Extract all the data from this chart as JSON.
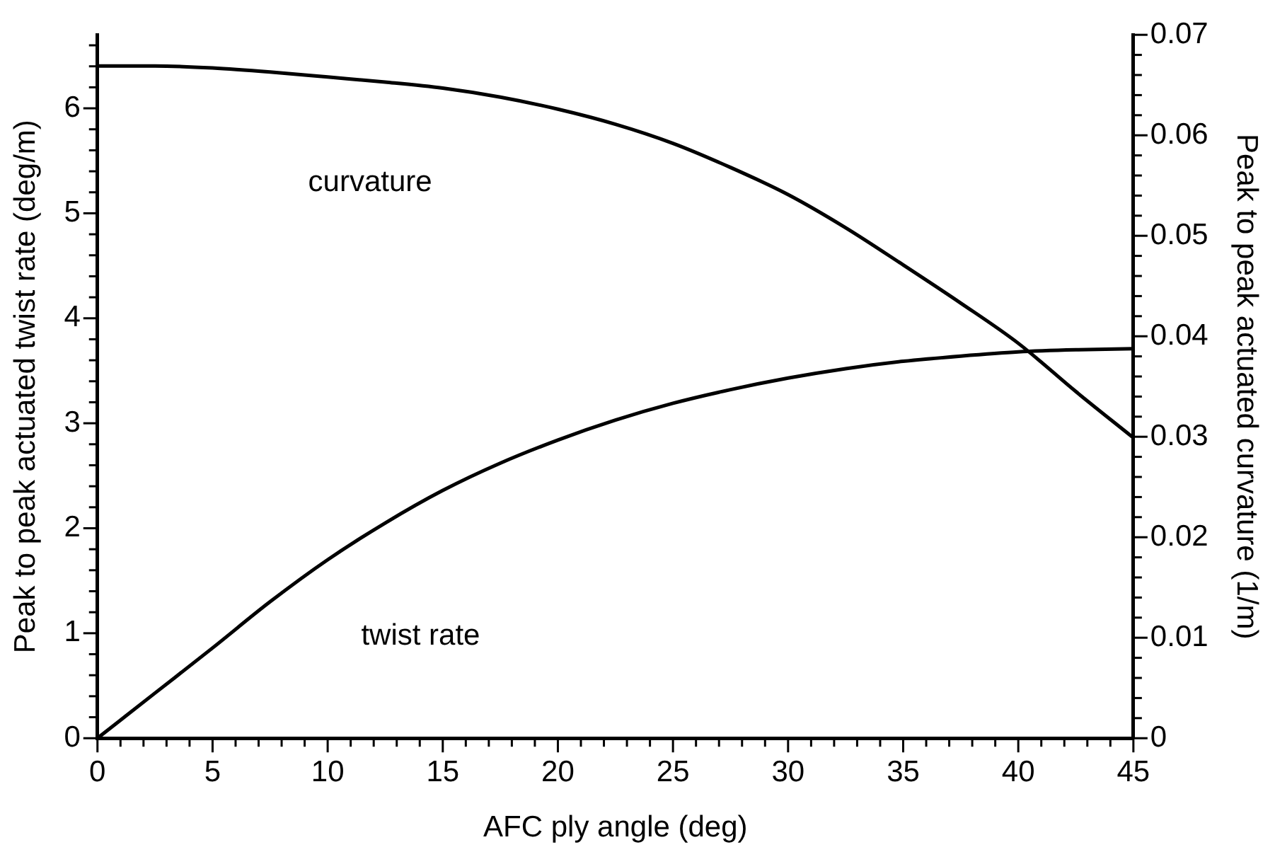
{
  "chart_data": {
    "type": "line",
    "xlabel": "AFC ply angle (deg)",
    "ylabel": "Peak to peak actuated twist rate (deg/m)",
    "y2label": "Peak to peak actuated curvature (1/m)",
    "x": [
      0,
      2.5,
      5,
      7.5,
      10,
      12.5,
      15,
      17.5,
      20,
      22.5,
      25,
      27.5,
      30,
      32.5,
      35,
      37.5,
      40,
      42.5,
      45
    ],
    "series": [
      {
        "name": "twist rate",
        "color": "#000000",
        "axis": "y",
        "values": [
          0,
          0.43,
          0.86,
          1.3,
          1.7,
          2.05,
          2.36,
          2.62,
          2.84,
          3.03,
          3.19,
          3.32,
          3.43,
          3.52,
          3.59,
          3.64,
          3.68,
          3.7,
          3.71
        ]
      },
      {
        "name": "curvature",
        "color": "#000000",
        "axis": "y2",
        "values": [
          0.0669,
          0.0669,
          0.0667,
          0.0663,
          0.0658,
          0.0653,
          0.0647,
          0.0638,
          0.0626,
          0.0611,
          0.0592,
          0.0568,
          0.0541,
          0.0508,
          0.0471,
          0.0433,
          0.0393,
          0.0345,
          0.0299
        ]
      }
    ],
    "xlim": [
      0,
      45
    ],
    "xticks": [
      0,
      {
        "value": 1,
        "label": null
      },
      {
        "value": 2,
        "label": null
      },
      {
        "value": 3,
        "label": null
      },
      {
        "value": 4,
        "label": null
      },
      5,
      {
        "value": 6,
        "label": null
      },
      {
        "value": 7,
        "label": null
      },
      {
        "value": 8,
        "label": null
      },
      {
        "value": 9,
        "label": null
      },
      10,
      {
        "value": 11,
        "label": null
      },
      {
        "value": 12,
        "label": null
      },
      {
        "value": 13,
        "label": null
      },
      {
        "value": 14,
        "label": null
      },
      15,
      {
        "value": 16,
        "label": null
      },
      {
        "value": 17,
        "label": null
      },
      {
        "value": 18,
        "label": null
      },
      {
        "value": 19,
        "label": null
      },
      20,
      {
        "value": 21,
        "label": null
      },
      {
        "value": 22,
        "label": null
      },
      {
        "value": 23,
        "label": null
      },
      {
        "value": 24,
        "label": null
      },
      25,
      {
        "value": 26,
        "label": null
      },
      {
        "value": 27,
        "label": null
      },
      {
        "value": 28,
        "label": null
      },
      {
        "value": 29,
        "label": null
      },
      30,
      {
        "value": 31,
        "label": null
      },
      {
        "value": 32,
        "label": null
      },
      {
        "value": 33,
        "label": null
      },
      {
        "value": 34,
        "label": null
      },
      35,
      {
        "value": 36,
        "label": null
      },
      {
        "value": 37,
        "label": null
      },
      {
        "value": 38,
        "label": null
      },
      {
        "value": 39,
        "label": null
      },
      40,
      {
        "value": 41,
        "label": null
      },
      {
        "value": 42,
        "label": null
      },
      {
        "value": 43,
        "label": null
      },
      {
        "value": 44,
        "label": null
      },
      45
    ],
    "ylim": [
      0,
      6.7
    ],
    "yticks": [
      0,
      {
        "value": 0.2,
        "label": null
      },
      {
        "value": 0.4,
        "label": null
      },
      {
        "value": 0.6,
        "label": null
      },
      {
        "value": 0.8,
        "label": null
      },
      1,
      {
        "value": 1.2,
        "label": null
      },
      {
        "value": 1.4,
        "label": null
      },
      {
        "value": 1.6,
        "label": null
      },
      {
        "value": 1.8,
        "label": null
      },
      2,
      {
        "value": 2.2,
        "label": null
      },
      {
        "value": 2.4,
        "label": null
      },
      {
        "value": 2.6,
        "label": null
      },
      {
        "value": 2.8,
        "label": null
      },
      3,
      {
        "value": 3.2,
        "label": null
      },
      {
        "value": 3.4,
        "label": null
      },
      {
        "value": 3.6,
        "label": null
      },
      {
        "value": 3.8,
        "label": null
      },
      4,
      {
        "value": 4.2,
        "label": null
      },
      {
        "value": 4.4,
        "label": null
      },
      {
        "value": 4.6,
        "label": null
      },
      {
        "value": 4.8,
        "label": null
      },
      5,
      {
        "value": 5.2,
        "label": null
      },
      {
        "value": 5.4,
        "label": null
      },
      {
        "value": 5.6,
        "label": null
      },
      {
        "value": 5.8,
        "label": null
      },
      6,
      {
        "value": 6.2,
        "label": null
      },
      {
        "value": 6.4,
        "label": null
      },
      {
        "value": 6.6,
        "label": null
      }
    ],
    "y2lim": [
      0,
      0.07
    ],
    "y2ticks": [
      0,
      {
        "value": 0.002,
        "label": null
      },
      {
        "value": 0.004,
        "label": null
      },
      {
        "value": 0.006,
        "label": null
      },
      {
        "value": 0.008,
        "label": null
      },
      0.01,
      {
        "value": 0.012,
        "label": null
      },
      {
        "value": 0.014,
        "label": null
      },
      {
        "value": 0.016,
        "label": null
      },
      {
        "value": 0.018,
        "label": null
      },
      0.02,
      {
        "value": 0.022,
        "label": null
      },
      {
        "value": 0.024,
        "label": null
      },
      {
        "value": 0.026,
        "label": null
      },
      {
        "value": 0.028,
        "label": null
      },
      0.03,
      {
        "value": 0.032,
        "label": null
      },
      {
        "value": 0.034,
        "label": null
      },
      {
        "value": 0.036,
        "label": null
      },
      {
        "value": 0.038,
        "label": null
      },
      0.04,
      {
        "value": 0.042,
        "label": null
      },
      {
        "value": 0.044,
        "label": null
      },
      {
        "value": 0.046,
        "label": null
      },
      {
        "value": 0.048,
        "label": null
      },
      0.05,
      {
        "value": 0.052,
        "label": null
      },
      {
        "value": 0.054,
        "label": null
      },
      {
        "value": 0.056,
        "label": null
      },
      {
        "value": 0.058,
        "label": null
      },
      0.06,
      {
        "value": 0.062,
        "label": null
      },
      {
        "value": 0.064,
        "label": null
      },
      {
        "value": 0.066,
        "label": null
      },
      {
        "value": 0.068,
        "label": null
      },
      0.07
    ],
    "grid": false,
    "legend": false,
    "marker": "none",
    "line_style": "solid"
  }
}
